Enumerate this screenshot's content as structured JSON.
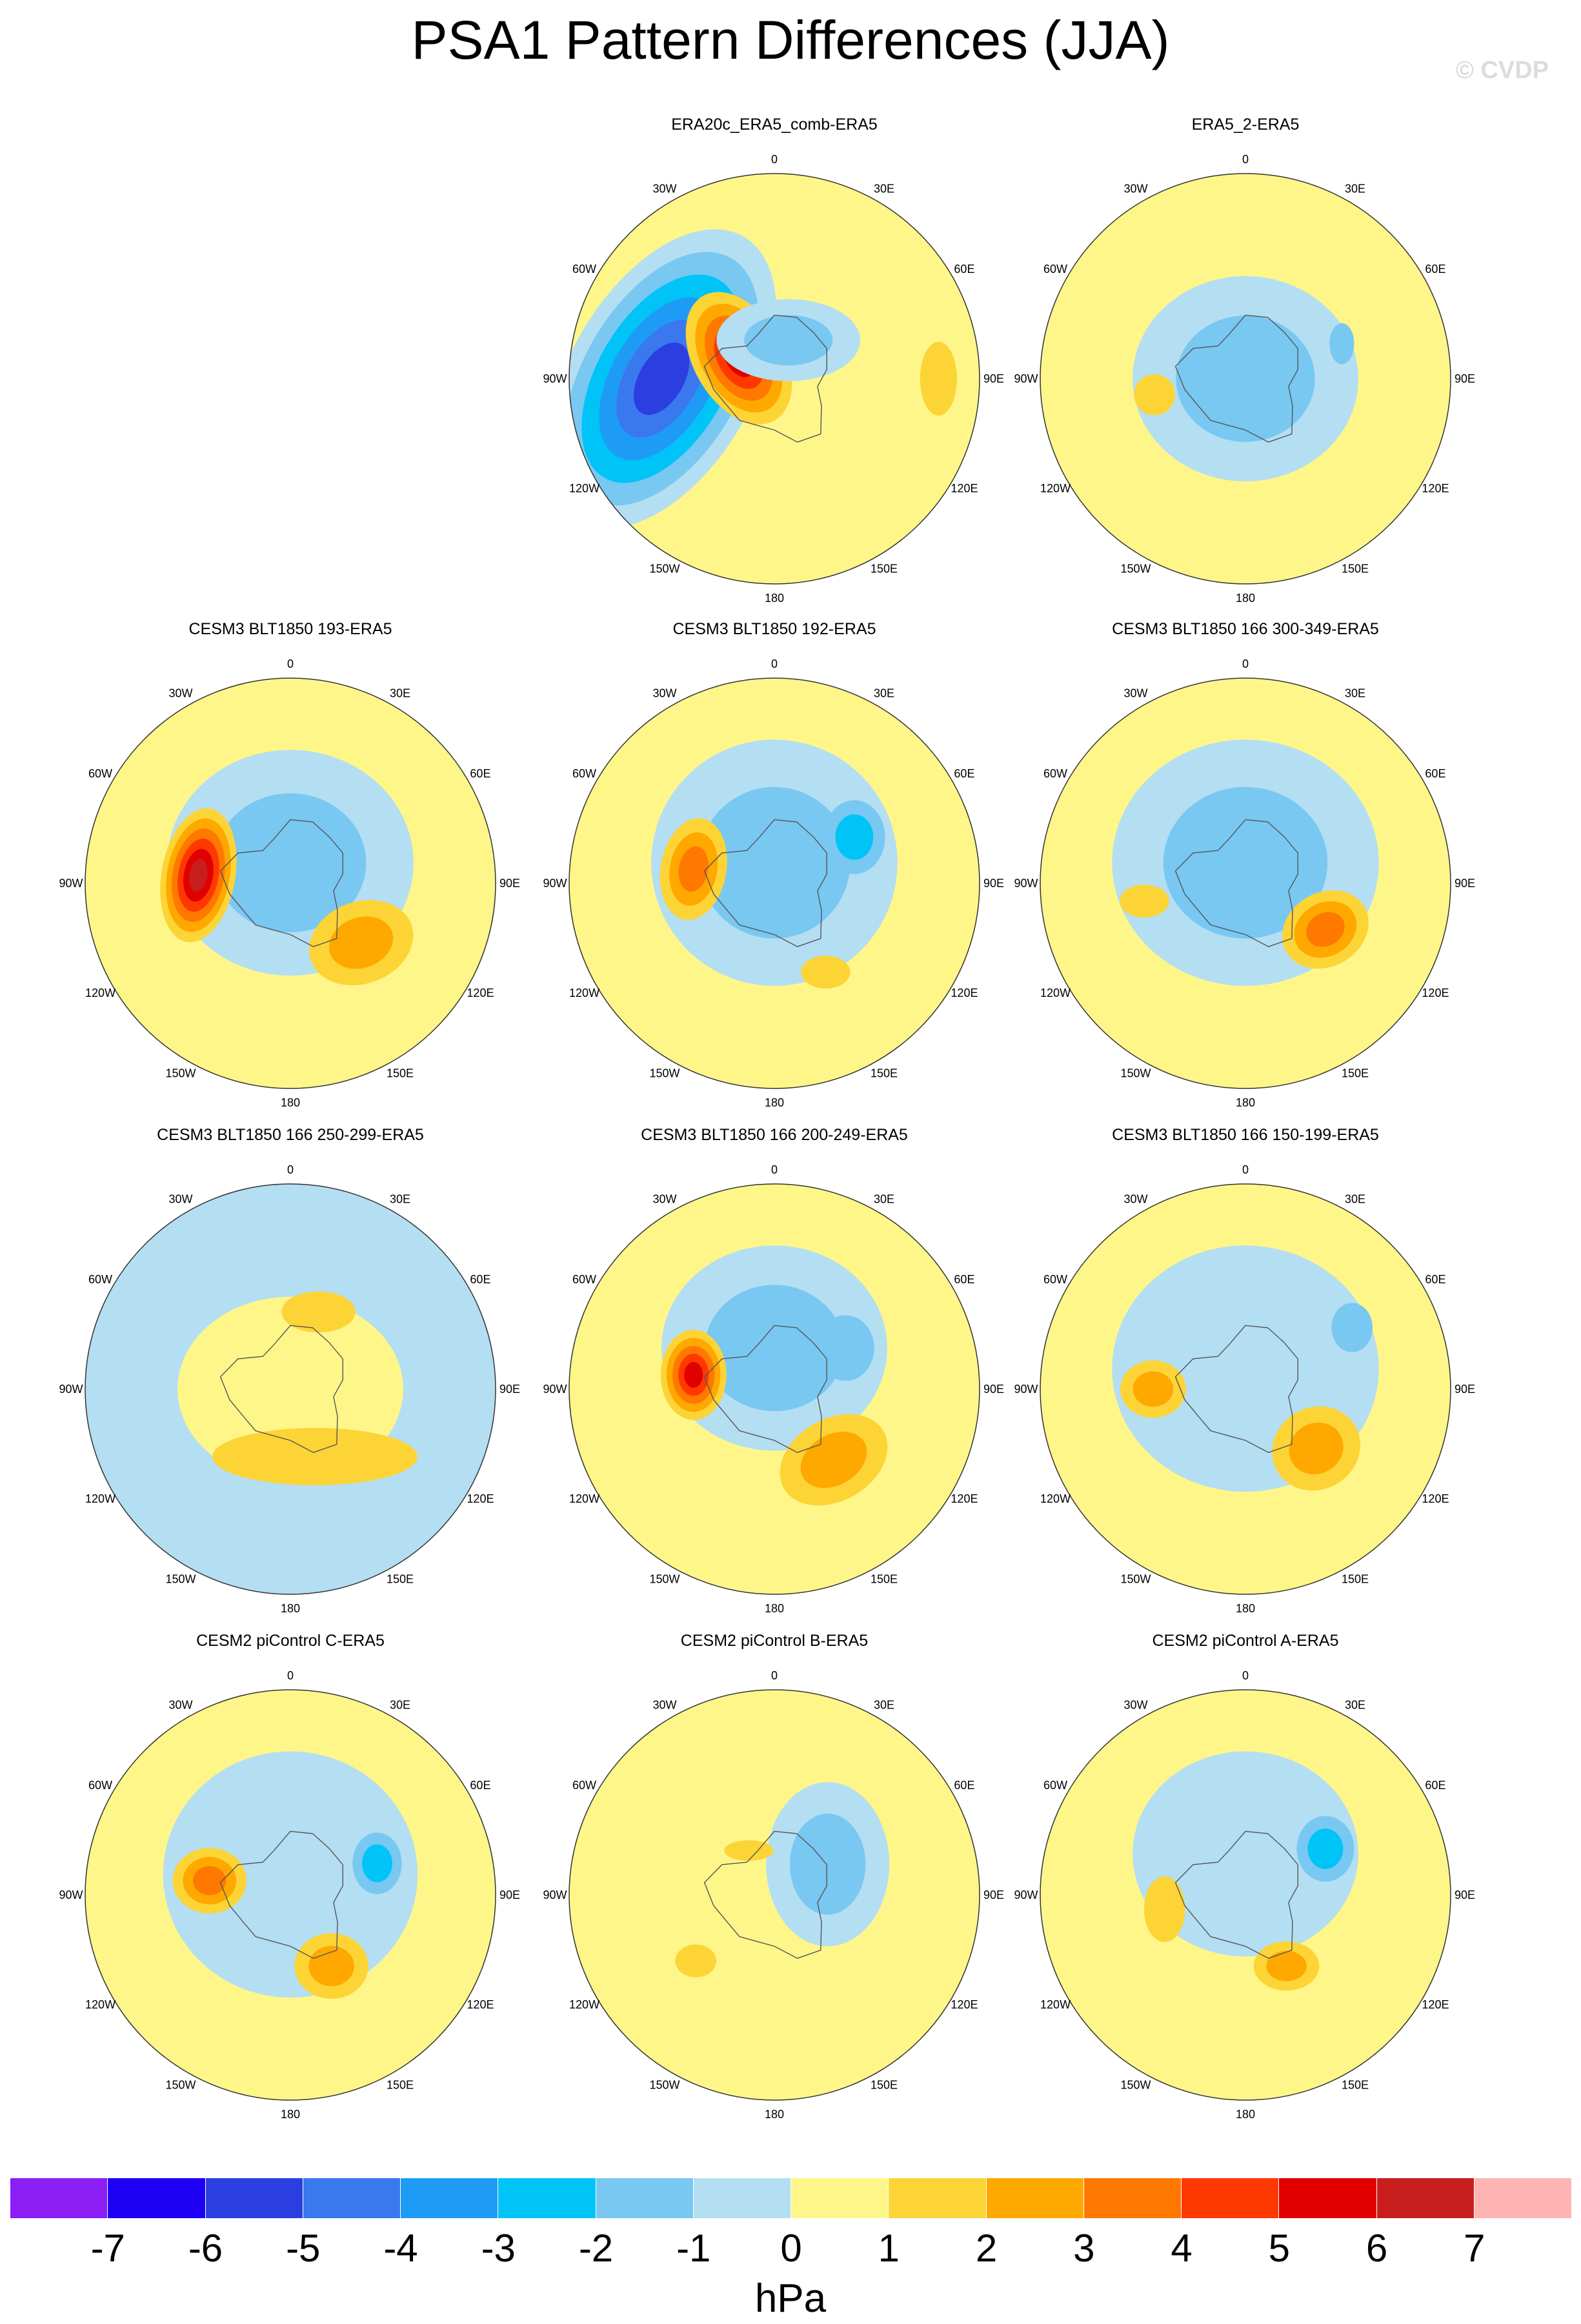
{
  "title": "PSA1 Pattern Differences (JJA)",
  "credit": "© CVDP",
  "units": "hPa",
  "lon_labels": [
    "0",
    "30E",
    "60E",
    "90E",
    "120E",
    "150E",
    "180",
    "150W",
    "120W",
    "90W",
    "60W",
    "30W"
  ],
  "colorbar": {
    "labels": [
      "-7",
      "-6",
      "-5",
      "-4",
      "-3",
      "-2",
      "-1",
      "0",
      "1",
      "2",
      "3",
      "4",
      "5",
      "6",
      "7"
    ],
    "colors": [
      "#8a1ef5",
      "#1e00f5",
      "#2b3fe0",
      "#3a78f0",
      "#1e9cf5",
      "#00c3f8",
      "#78c8f2",
      "#b4def2",
      "#fff68a",
      "#fdd436",
      "#ffa800",
      "#ff7800",
      "#ff3800",
      "#e00000",
      "#c81e1e",
      "#ffb4b4"
    ]
  },
  "palette": {
    "m6": "#1e00f5",
    "m5": "#2b3fe0",
    "m4": "#3a78f0",
    "m3": "#1e9cf5",
    "m2": "#00c3f8",
    "m1": "#78c8f2",
    "m0": "#b4def2",
    "p0": "#fff68a",
    "p1": "#fdd436",
    "p2": "#ffa800",
    "p3": "#ff7800",
    "p4": "#ff3800",
    "p5": "#e00000",
    "p6": "#c81e1e",
    "p7": "#ffb4b4"
  },
  "panels": [
    {
      "title": "ERA20c_ERA5_comb-ERA5",
      "base": "p0",
      "features": [
        {
          "lon": 270,
          "r": 0.55,
          "sx": 0.45,
          "sy": 0.8,
          "rot": 30,
          "levels": [
            "m0",
            "m1",
            "m2",
            "m3",
            "m4",
            "m5"
          ]
        },
        {
          "lon": 300,
          "r": 0.2,
          "sx": 0.22,
          "sy": 0.35,
          "rot": -30,
          "levels": [
            "p1",
            "p2",
            "p3",
            "p4",
            "p5"
          ]
        },
        {
          "lon": 90,
          "r": 0.8,
          "sx": 0.09,
          "sy": 0.18,
          "rot": 0,
          "levels": [
            "p1"
          ]
        },
        {
          "lon": 20,
          "r": 0.2,
          "sx": 0.35,
          "sy": 0.2,
          "rot": 0,
          "levels": [
            "m0",
            "m1"
          ]
        }
      ]
    },
    {
      "title": "ERA5_2-ERA5",
      "base": "p0",
      "features": [
        {
          "lon": 0,
          "r": 0.0,
          "sx": 0.55,
          "sy": 0.5,
          "rot": 0,
          "levels": [
            "m0",
            "m1"
          ]
        },
        {
          "lon": 260,
          "r": 0.45,
          "sx": 0.1,
          "sy": 0.1,
          "rot": 0,
          "levels": [
            "p1"
          ]
        },
        {
          "lon": 70,
          "r": 0.5,
          "sx": 0.06,
          "sy": 0.1,
          "rot": 0,
          "levels": [
            "m1"
          ]
        }
      ]
    },
    {
      "title": "CESM3 BLT1850 193-ERA5",
      "base": "p0",
      "features": [
        {
          "lon": 0,
          "r": 0.1,
          "sx": 0.6,
          "sy": 0.55,
          "rot": 0,
          "levels": [
            "m0",
            "m1"
          ]
        },
        {
          "lon": 275,
          "r": 0.45,
          "sx": 0.18,
          "sy": 0.33,
          "rot": 10,
          "levels": [
            "p1",
            "p2",
            "p3",
            "p4",
            "p5",
            "p6"
          ]
        },
        {
          "lon": 130,
          "r": 0.45,
          "sx": 0.26,
          "sy": 0.2,
          "rot": -20,
          "levels": [
            "p1",
            "p2"
          ]
        }
      ]
    },
    {
      "title": "CESM3 BLT1850 192-ERA5",
      "base": "p0",
      "features": [
        {
          "lon": 0,
          "r": 0.1,
          "sx": 0.6,
          "sy": 0.6,
          "rot": 0,
          "levels": [
            "m0",
            "m1"
          ]
        },
        {
          "lon": 280,
          "r": 0.4,
          "sx": 0.16,
          "sy": 0.25,
          "rot": 10,
          "levels": [
            "p1",
            "p2",
            "p3"
          ]
        },
        {
          "lon": 60,
          "r": 0.45,
          "sx": 0.15,
          "sy": 0.18,
          "rot": 0,
          "levels": [
            "m1",
            "m2"
          ]
        },
        {
          "lon": 150,
          "r": 0.5,
          "sx": 0.12,
          "sy": 0.08,
          "rot": 0,
          "levels": [
            "p1"
          ]
        }
      ]
    },
    {
      "title": "CESM3 BLT1850 166 300-349-ERA5",
      "base": "p0",
      "features": [
        {
          "lon": 0,
          "r": 0.1,
          "sx": 0.65,
          "sy": 0.6,
          "rot": 0,
          "levels": [
            "m0",
            "m1"
          ]
        },
        {
          "lon": 120,
          "r": 0.45,
          "sx": 0.22,
          "sy": 0.18,
          "rot": -30,
          "levels": [
            "p1",
            "p2",
            "p3"
          ]
        },
        {
          "lon": 260,
          "r": 0.5,
          "sx": 0.12,
          "sy": 0.08,
          "rot": 0,
          "levels": [
            "p1"
          ]
        }
      ]
    },
    {
      "title": "CESM3 BLT1850 166 250-299-ERA5",
      "base": "m0",
      "features": [
        {
          "lon": 0,
          "r": 0.0,
          "sx": 0.55,
          "sy": 0.45,
          "rot": 0,
          "levels": [
            "p0"
          ]
        },
        {
          "lon": 160,
          "r": 0.35,
          "sx": 0.5,
          "sy": 0.14,
          "rot": 0,
          "levels": [
            "p1"
          ]
        },
        {
          "lon": 20,
          "r": 0.4,
          "sx": 0.18,
          "sy": 0.1,
          "rot": 0,
          "levels": [
            "p1"
          ]
        }
      ]
    },
    {
      "title": "CESM3 BLT1850 166 200-249-ERA5",
      "base": "p0",
      "features": [
        {
          "lon": 0,
          "r": 0.2,
          "sx": 0.55,
          "sy": 0.5,
          "rot": 0,
          "levels": [
            "m0",
            "m1"
          ]
        },
        {
          "lon": 280,
          "r": 0.4,
          "sx": 0.16,
          "sy": 0.22,
          "rot": 0,
          "levels": [
            "p1",
            "p2",
            "p3",
            "p4",
            "p5"
          ]
        },
        {
          "lon": 140,
          "r": 0.45,
          "sx": 0.28,
          "sy": 0.2,
          "rot": -30,
          "levels": [
            "p1",
            "p2"
          ]
        },
        {
          "lon": 60,
          "r": 0.4,
          "sx": 0.14,
          "sy": 0.16,
          "rot": 0,
          "levels": [
            "m1"
          ]
        }
      ]
    },
    {
      "title": "CESM3 BLT1850 166 150-199-ERA5",
      "base": "p0",
      "features": [
        {
          "lon": 0,
          "r": 0.1,
          "sx": 0.65,
          "sy": 0.6,
          "rot": 0,
          "levels": [
            "m0"
          ]
        },
        {
          "lon": 270,
          "r": 0.45,
          "sx": 0.16,
          "sy": 0.14,
          "rot": 0,
          "levels": [
            "p1",
            "p2"
          ]
        },
        {
          "lon": 130,
          "r": 0.45,
          "sx": 0.22,
          "sy": 0.2,
          "rot": -30,
          "levels": [
            "p1",
            "p2"
          ]
        },
        {
          "lon": 60,
          "r": 0.6,
          "sx": 0.1,
          "sy": 0.12,
          "rot": 0,
          "levels": [
            "m1"
          ]
        }
      ]
    },
    {
      "title": "CESM2 piControl C-ERA5",
      "base": "p0",
      "features": [
        {
          "lon": 0,
          "r": 0.1,
          "sx": 0.62,
          "sy": 0.6,
          "rot": 0,
          "levels": [
            "m0"
          ]
        },
        {
          "lon": 280,
          "r": 0.4,
          "sx": 0.18,
          "sy": 0.16,
          "rot": 0,
          "levels": [
            "p1",
            "p2",
            "p3"
          ]
        },
        {
          "lon": 150,
          "r": 0.4,
          "sx": 0.18,
          "sy": 0.16,
          "rot": 0,
          "levels": [
            "p1",
            "p2"
          ]
        },
        {
          "lon": 70,
          "r": 0.45,
          "sx": 0.12,
          "sy": 0.15,
          "rot": 0,
          "levels": [
            "m1",
            "m2"
          ]
        }
      ]
    },
    {
      "title": "CESM2 piControl B-ERA5",
      "base": "p0",
      "features": [
        {
          "lon": 60,
          "r": 0.3,
          "sx": 0.3,
          "sy": 0.4,
          "rot": 0,
          "levels": [
            "m0",
            "m1"
          ]
        },
        {
          "lon": 230,
          "r": 0.5,
          "sx": 0.1,
          "sy": 0.08,
          "rot": 0,
          "levels": [
            "p1"
          ]
        },
        {
          "lon": 330,
          "r": 0.25,
          "sx": 0.12,
          "sy": 0.05,
          "rot": 0,
          "levels": [
            "p1"
          ]
        }
      ]
    },
    {
      "title": "CESM2 piControl A-ERA5",
      "base": "p0",
      "features": [
        {
          "lon": 0,
          "r": 0.2,
          "sx": 0.55,
          "sy": 0.5,
          "rot": 0,
          "levels": [
            "m0"
          ]
        },
        {
          "lon": 60,
          "r": 0.45,
          "sx": 0.14,
          "sy": 0.16,
          "rot": 0,
          "levels": [
            "m1",
            "m2"
          ]
        },
        {
          "lon": 150,
          "r": 0.4,
          "sx": 0.16,
          "sy": 0.12,
          "rot": 0,
          "levels": [
            "p1",
            "p2"
          ]
        },
        {
          "lon": 260,
          "r": 0.4,
          "sx": 0.1,
          "sy": 0.16,
          "rot": 0,
          "levels": [
            "p1"
          ]
        }
      ]
    }
  ]
}
